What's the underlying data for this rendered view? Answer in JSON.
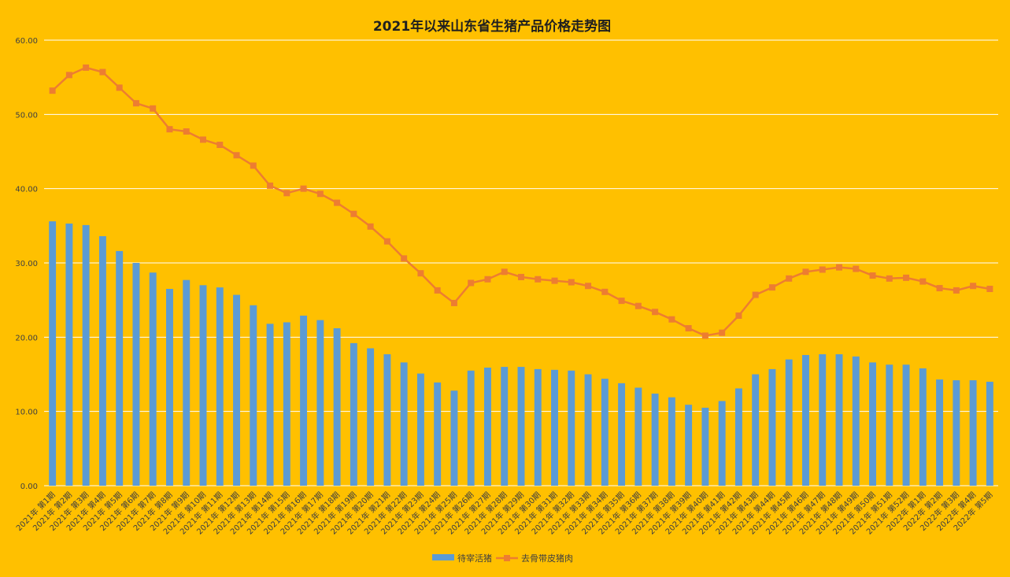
{
  "chart_data": {
    "type": "bar",
    "title": "2021年以来山东省生猪产品价格走势图",
    "xlabel": "",
    "ylabel": "",
    "ylim": [
      0,
      60
    ],
    "yticks": [
      "0.00",
      "10.00",
      "20.00",
      "30.00",
      "40.00",
      "50.00",
      "60.00"
    ],
    "grid": true,
    "legend_position": "bottom",
    "colors": {
      "background": "#FFC000",
      "bar": "#5B9BD5",
      "line": "#ED7D31",
      "grid": "#FFFFFF"
    },
    "categories": [
      "2021年 第1期",
      "2021年 第2期",
      "2021年 第3期",
      "2021年 第4期",
      "2021年 第5期",
      "2021年 第6期",
      "2021年 第7期",
      "2021年 第8期",
      "2021年 第9期",
      "2021年 第10期",
      "2021年 第11期",
      "2021年 第12期",
      "2021年 第13期",
      "2021年 第14期",
      "2021年 第15期",
      "2021年 第16期",
      "2021年 第17期",
      "2021年 第18期",
      "2021年 第19期",
      "2021年 第20期",
      "2021年 第21期",
      "2021年 第22期",
      "2021年 第23期",
      "2021年 第24期",
      "2021年 第25期",
      "2021年 第26期",
      "2021年 第27期",
      "2021年 第28期",
      "2021年 第29期",
      "2021年 第30期",
      "2021年 第31期",
      "2021年 第32期",
      "2021年 第33期",
      "2021年 第34期",
      "2021年 第35期",
      "2021年 第36期",
      "2021年 第37期",
      "2021年 第38期",
      "2021年 第39期",
      "2021年 第40期",
      "2021年 第41期",
      "2021年 第42期",
      "2021年 第43期",
      "2021年 第44期",
      "2021年 第45期",
      "2021年 第46期",
      "2021年 第47期",
      "2021年 第48期",
      "2021年 第49期",
      "2021年 第50期",
      "2021年 第51期",
      "2021年 第52期",
      "2022年 第1期",
      "2022年 第2期",
      "2022年 第3期",
      "2022年 第4期",
      "2022年 第5期"
    ],
    "series": [
      {
        "name": "待宰活猪",
        "type": "bar",
        "values": [
          35.6,
          35.3,
          35.1,
          33.6,
          31.6,
          30.0,
          28.7,
          26.5,
          27.7,
          27.0,
          26.7,
          25.7,
          24.3,
          21.8,
          22.0,
          22.9,
          22.3,
          21.2,
          19.2,
          18.5,
          17.7,
          16.6,
          15.1,
          13.9,
          12.8,
          15.5,
          15.9,
          16.0,
          16.0,
          15.7,
          15.6,
          15.5,
          15.0,
          14.4,
          13.8,
          13.2,
          12.4,
          11.9,
          10.9,
          10.5,
          11.4,
          13.1,
          15.0,
          15.7,
          17.0,
          17.6,
          17.7,
          17.7,
          17.4,
          16.6,
          16.3,
          16.3,
          15.8,
          14.3,
          14.2,
          14.2,
          14.0
        ]
      },
      {
        "name": "去骨带皮猪肉",
        "type": "line",
        "values": [
          53.2,
          55.3,
          56.3,
          55.7,
          53.6,
          51.5,
          50.8,
          48.0,
          47.7,
          46.6,
          45.9,
          44.5,
          43.1,
          40.4,
          39.4,
          40.0,
          39.3,
          38.1,
          36.6,
          34.9,
          32.9,
          30.6,
          28.6,
          26.3,
          24.6,
          27.3,
          27.8,
          28.8,
          28.1,
          27.8,
          27.6,
          27.4,
          26.9,
          26.1,
          24.9,
          24.2,
          23.4,
          22.4,
          21.2,
          20.2,
          20.6,
          22.9,
          25.7,
          26.7,
          27.9,
          28.8,
          29.1,
          29.4,
          29.2,
          28.3,
          27.9,
          28.0,
          27.5,
          26.6,
          26.3,
          26.9,
          26.5
        ]
      }
    ]
  }
}
